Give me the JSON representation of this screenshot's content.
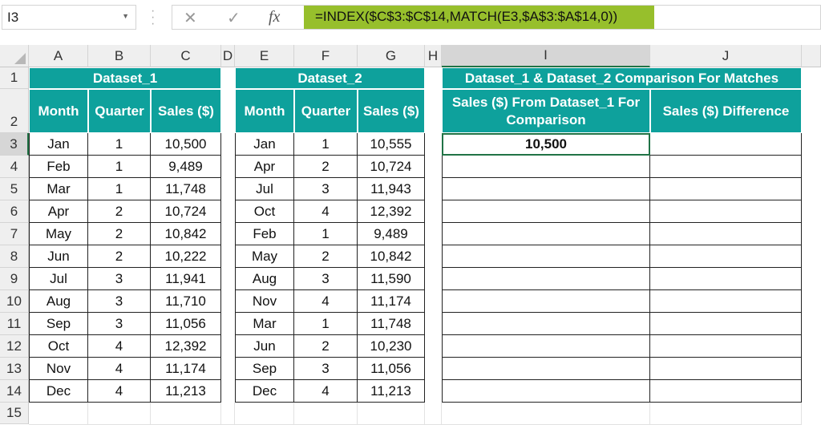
{
  "formula_bar": {
    "name_box": "I3",
    "cancel_icon": "✕",
    "enter_icon": "✓",
    "fx_label": "fx",
    "formula": "=INDEX($C$3:$C$14,MATCH(E3,$A$3:$A$14,0))",
    "highlight_color": "#97bf2c"
  },
  "columns": [
    "A",
    "B",
    "C",
    "D",
    "E",
    "F",
    "G",
    "H",
    "I",
    "J"
  ],
  "rows": [
    "1",
    "2",
    "3",
    "4",
    "5",
    "6",
    "7",
    "8",
    "9",
    "10",
    "11",
    "12",
    "13",
    "14",
    "15"
  ],
  "header_color": "#0ea19c",
  "dataset1": {
    "title": "Dataset_1",
    "headers": [
      "Month",
      "Quarter",
      "Sales ($)"
    ],
    "rows": [
      [
        "Jan",
        "1",
        "10,500"
      ],
      [
        "Feb",
        "1",
        "9,489"
      ],
      [
        "Mar",
        "1",
        "11,748"
      ],
      [
        "Apr",
        "2",
        "10,724"
      ],
      [
        "May",
        "2",
        "10,842"
      ],
      [
        "Jun",
        "2",
        "10,222"
      ],
      [
        "Jul",
        "3",
        "11,941"
      ],
      [
        "Aug",
        "3",
        "11,710"
      ],
      [
        "Sep",
        "3",
        "11,056"
      ],
      [
        "Oct",
        "4",
        "12,392"
      ],
      [
        "Nov",
        "4",
        "11,174"
      ],
      [
        "Dec",
        "4",
        "11,213"
      ]
    ]
  },
  "dataset2": {
    "title": "Dataset_2",
    "headers": [
      "Month",
      "Quarter",
      "Sales ($)"
    ],
    "rows": [
      [
        "Jan",
        "1",
        "10,555"
      ],
      [
        "Apr",
        "2",
        "10,724"
      ],
      [
        "Jul",
        "3",
        "11,943"
      ],
      [
        "Oct",
        "4",
        "12,392"
      ],
      [
        "Feb",
        "1",
        "9,489"
      ],
      [
        "May",
        "2",
        "10,842"
      ],
      [
        "Aug",
        "3",
        "11,590"
      ],
      [
        "Nov",
        "4",
        "11,174"
      ],
      [
        "Mar",
        "1",
        "11,748"
      ],
      [
        "Jun",
        "2",
        "10,230"
      ],
      [
        "Sep",
        "3",
        "11,056"
      ],
      [
        "Dec",
        "4",
        "11,213"
      ]
    ]
  },
  "comparison": {
    "title": "Dataset_1 & Dataset_2 Comparison For Matches",
    "headers": [
      "Sales ($) From Dataset_1 For Comparison",
      "Sales ($) Difference"
    ],
    "rows": [
      [
        "10,500",
        ""
      ],
      [
        "",
        ""
      ],
      [
        "",
        ""
      ],
      [
        "",
        ""
      ],
      [
        "",
        ""
      ],
      [
        "",
        ""
      ],
      [
        "",
        ""
      ],
      [
        "",
        ""
      ],
      [
        "",
        ""
      ],
      [
        "",
        ""
      ],
      [
        "",
        ""
      ],
      [
        "",
        ""
      ]
    ]
  },
  "active_cell": "I3"
}
